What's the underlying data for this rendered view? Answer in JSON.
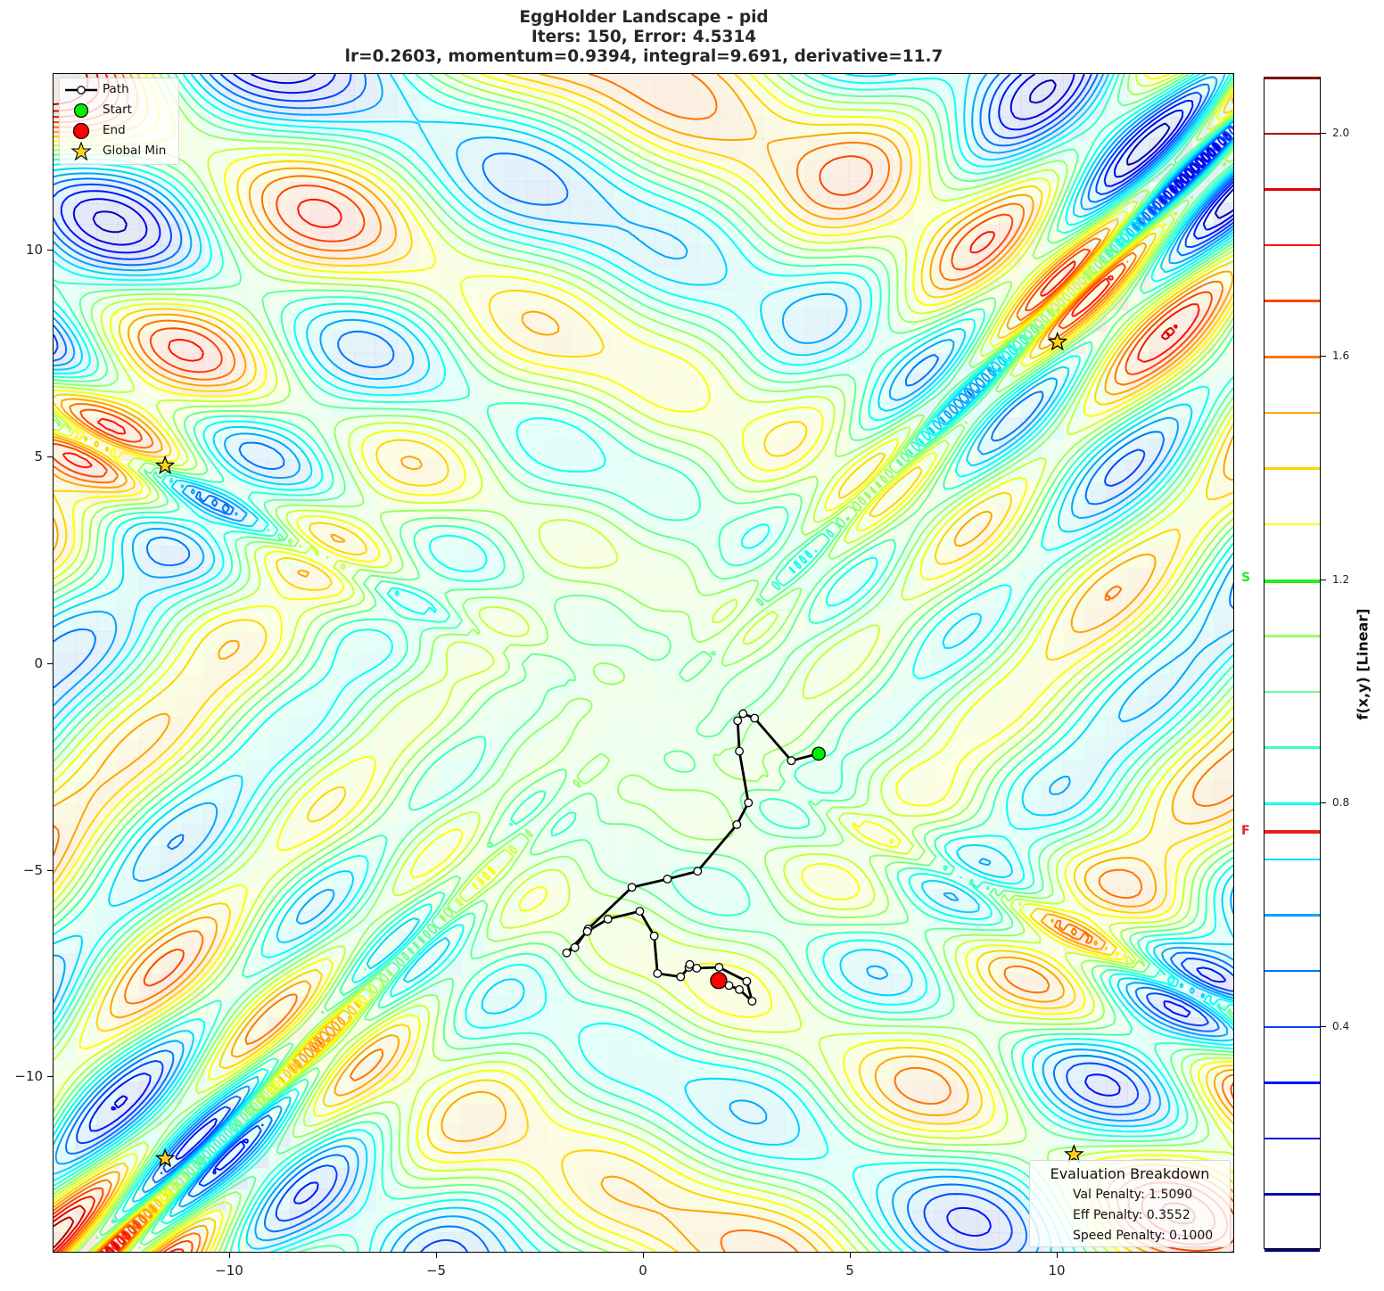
{
  "title": {
    "line1": "EggHolder Landscape - pid",
    "line2": "Iters: 150, Error: 4.5314",
    "line3": "lr=0.2603, momentum=0.9394, integral=9.691, derivative=11.7"
  },
  "legend": {
    "items": [
      {
        "label": "Path",
        "icon": "line-with-white-circle-marker"
      },
      {
        "label": "Start",
        "icon": "green-circle",
        "color": "#00ee00"
      },
      {
        "label": "End",
        "icon": "red-circle",
        "color": "#ff0000"
      },
      {
        "label": "Global Min",
        "icon": "gold-star",
        "color": "#ffd700"
      }
    ]
  },
  "evaluation": {
    "title": "Evaluation Breakdown",
    "lines": [
      "Val Penalty: 1.5090",
      "Eff Penalty: 0.3552",
      "Speed Penalty: 0.1000"
    ]
  },
  "colorbar": {
    "label": "f(x,y) [Linear]",
    "ticks": [
      "2.0",
      "1.6",
      "1.2",
      "0.8",
      "0.4"
    ],
    "markers": {
      "start": {
        "label": "S",
        "value": 1.2,
        "color": "#22ee22"
      },
      "final": {
        "label": "F",
        "value": 0.75,
        "color": "#e82020"
      }
    }
  },
  "chart_data": {
    "type": "contour",
    "title": "EggHolder Landscape - pid",
    "subtitle": [
      "Iters: 150, Error: 4.5314",
      "lr=0.2603, momentum=0.9394, integral=9.691, derivative=11.7"
    ],
    "xlabel": "",
    "ylabel": "",
    "xlim": [
      -14.3,
      14.3
    ],
    "ylim": [
      -14.3,
      14.3
    ],
    "xticks": [
      -10,
      -5,
      0,
      5,
      10
    ],
    "yticks": [
      -10,
      -5,
      0,
      5,
      10
    ],
    "colormap": "jet",
    "colorbar": {
      "label": "f(x,y) [Linear]",
      "range": [
        0.0,
        2.1
      ],
      "ticks": [
        0.4,
        0.8,
        1.2,
        1.6,
        2.0
      ],
      "levels_step": 0.1
    },
    "grid": false,
    "legend_position": "upper left",
    "series": [
      {
        "name": "Path",
        "type": "line",
        "points": [
          [
            4.22,
            -2.18
          ],
          [
            3.56,
            -2.35
          ],
          [
            2.67,
            -1.32
          ],
          [
            2.39,
            -1.21
          ],
          [
            2.26,
            -1.38
          ],
          [
            2.3,
            -2.12
          ],
          [
            2.52,
            -3.37
          ],
          [
            2.24,
            -3.9
          ],
          [
            1.29,
            -5.03
          ],
          [
            0.56,
            -5.22
          ],
          [
            -0.3,
            -5.42
          ],
          [
            -1.36,
            -6.43
          ],
          [
            -1.68,
            -6.88
          ],
          [
            -1.88,
            -7.01
          ],
          [
            -1.38,
            -6.49
          ],
          [
            -0.88,
            -6.19
          ],
          [
            -0.11,
            -6.0
          ],
          [
            0.24,
            -6.6
          ],
          [
            0.32,
            -7.51
          ],
          [
            0.88,
            -7.59
          ],
          [
            1.08,
            -7.36
          ],
          [
            1.1,
            -7.29
          ],
          [
            1.27,
            -7.38
          ],
          [
            1.81,
            -7.36
          ],
          [
            2.48,
            -7.7
          ],
          [
            2.61,
            -8.18
          ],
          [
            2.3,
            -7.9
          ],
          [
            2.05,
            -7.8
          ],
          [
            1.85,
            -7.72
          ],
          [
            1.7,
            -7.66
          ]
        ]
      },
      {
        "name": "Start",
        "type": "scatter",
        "points": [
          [
            4.22,
            -2.18
          ]
        ],
        "color": "#00ee00"
      },
      {
        "name": "End",
        "type": "scatter",
        "points": [
          [
            1.8,
            -7.68
          ]
        ],
        "color": "#ff0000"
      },
      {
        "name": "Global Min",
        "type": "scatter",
        "marker": "star",
        "points": [
          [
            10.0,
            7.8
          ],
          [
            -11.6,
            4.8
          ],
          [
            -11.6,
            -12.0
          ],
          [
            10.4,
            -11.9
          ]
        ],
        "color": "#ffd700"
      }
    ],
    "annotations": [
      {
        "text": "Evaluation Breakdown",
        "position": "lower right"
      },
      {
        "text": "Val Penalty: 1.5090"
      },
      {
        "text": "Eff Penalty: 0.3552"
      },
      {
        "text": "Speed Penalty: 0.1000"
      }
    ]
  }
}
